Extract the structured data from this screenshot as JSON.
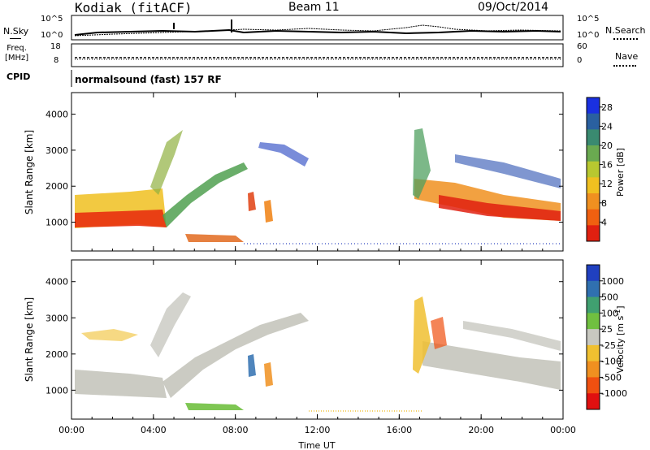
{
  "header": {
    "station": "Kodiak (fitACF)",
    "beam": "Beam 11",
    "date": "09/Oct/2014"
  },
  "sky_panel": {
    "left_label": "N.Sky",
    "right_label": "N.Search",
    "left_ticks": [
      "10^5",
      "10^0"
    ],
    "right_ticks": [
      "10^5",
      "10^0"
    ]
  },
  "freq_panel": {
    "left_label_line1": "Freq.",
    "left_label_line2": "[MHz]",
    "left_ticks": [
      "18",
      "8"
    ],
    "right_ticks": [
      "60",
      "0"
    ],
    "right_label": "Nave"
  },
  "cpid_panel": {
    "label": "CPID",
    "text": "normalsound (fast) 157 RF"
  },
  "chart_data": [
    {
      "type": "heatmap",
      "title": "",
      "ylabel": "Slant Range [km]",
      "xlabel": "",
      "ylim": [
        200,
        4600
      ],
      "y_ticks": [
        "1000",
        "2000",
        "3000",
        "4000"
      ],
      "x_ticks": [
        "00:00",
        "04:00",
        "08:00",
        "12:00",
        "16:00",
        "20:00",
        "00:00"
      ],
      "colorbar": {
        "label": "Power [dB]",
        "ticks": [
          "4",
          "8",
          "12",
          "16",
          "20",
          "24",
          "28"
        ],
        "range": [
          0,
          30
        ],
        "colors": [
          "#1a30e0",
          "#2a60a0",
          "#3a8a70",
          "#6aaa50",
          "#b8c830",
          "#f0c020",
          "#f09020",
          "#f06010",
          "#e02010"
        ]
      }
    },
    {
      "type": "heatmap",
      "title": "",
      "ylabel": "Slant Range [km]",
      "xlabel": "Time UT",
      "ylim": [
        200,
        4600
      ],
      "y_ticks": [
        "1000",
        "2000",
        "3000",
        "4000"
      ],
      "x_ticks": [
        "00:00",
        "04:00",
        "08:00",
        "12:00",
        "16:00",
        "20:00",
        "00:00"
      ],
      "colorbar": {
        "label": "Velocity [m s",
        "label_exp": "-1",
        "label_end": "]",
        "ticks": [
          "1000",
          "500",
          "100",
          "25",
          "-25",
          "-100",
          "-500",
          "-1000"
        ],
        "colors": [
          "#2040c0",
          "#3070b0",
          "#40a070",
          "#70c040",
          "#c8c8c0",
          "#f0c030",
          "#f09020",
          "#f05010",
          "#e01010"
        ]
      }
    }
  ]
}
